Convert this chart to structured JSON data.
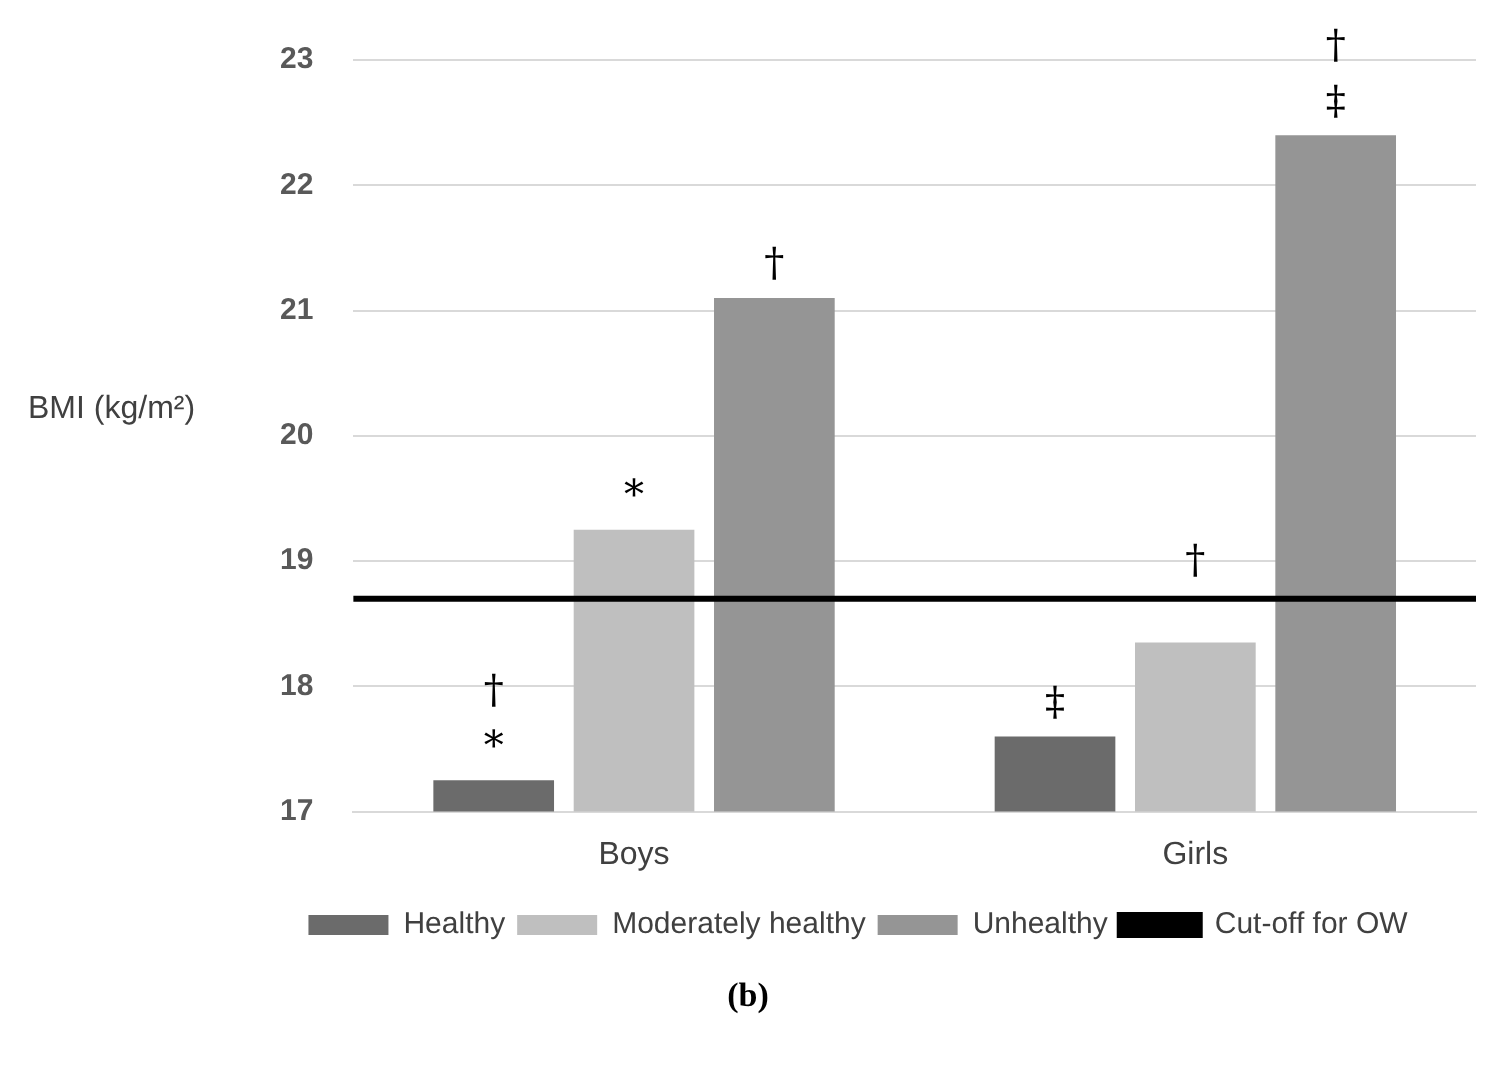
{
  "chart_data": {
    "type": "bar",
    "ylabel": "BMI (kg/m²)",
    "categories": [
      "Boys",
      "Girls"
    ],
    "series": [
      {
        "name": "Healthy",
        "color": "#6b6b6b",
        "values": [
          17.25,
          17.6
        ],
        "value_labels": [
          "†\n*",
          "‡"
        ]
      },
      {
        "name": "Moderately healthy",
        "color": "#bfbfbf",
        "values": [
          19.25,
          18.35
        ],
        "value_labels": [
          "*",
          "†"
        ]
      },
      {
        "name": "Unhealthy",
        "color": "#959595",
        "values": [
          21.1,
          22.4
        ],
        "value_labels": [
          "†",
          "†\n‡"
        ]
      }
    ],
    "ylim": [
      17,
      23
    ],
    "yticks": [
      17,
      18,
      19,
      20,
      21,
      22,
      23
    ],
    "grid": "y",
    "legend": "bottom",
    "ref_lines": [
      {
        "axis": "y",
        "value": 18.7,
        "label": "Cut-off for OW",
        "color": "#000000"
      }
    ],
    "annotations": [
      "(b)"
    ]
  }
}
